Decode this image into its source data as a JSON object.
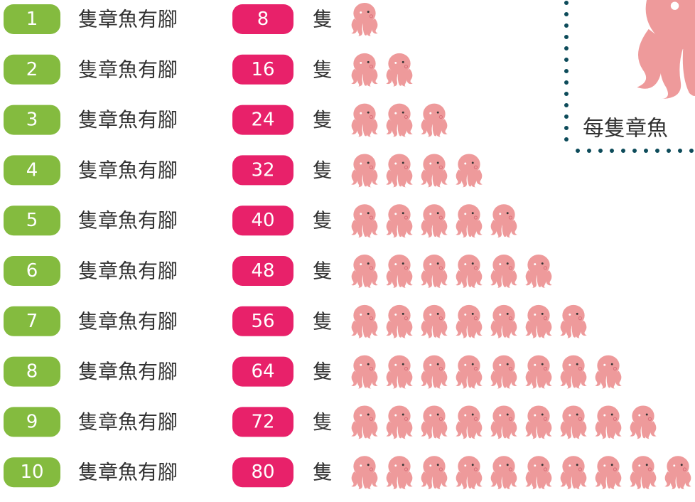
{
  "rows": [
    {
      "count": 1,
      "label": "隻章魚有腳",
      "legs": 8,
      "unit": "隻"
    },
    {
      "count": 2,
      "label": "隻章魚有腳",
      "legs": 16,
      "unit": "隻"
    },
    {
      "count": 3,
      "label": "隻章魚有腳",
      "legs": 24,
      "unit": "隻"
    },
    {
      "count": 4,
      "label": "隻章魚有腳",
      "legs": 32,
      "unit": "隻"
    },
    {
      "count": 5,
      "label": "隻章魚有腳",
      "legs": 40,
      "unit": "隻"
    },
    {
      "count": 6,
      "label": "隻章魚有腳",
      "legs": 48,
      "unit": "隻"
    },
    {
      "count": 7,
      "label": "隻章魚有腳",
      "legs": 56,
      "unit": "隻"
    },
    {
      "count": 8,
      "label": "隻章魚有腳",
      "legs": 64,
      "unit": "隻"
    },
    {
      "count": 9,
      "label": "隻章魚有腳",
      "legs": 72,
      "unit": "隻"
    },
    {
      "count": 10,
      "label": "隻章魚有腳",
      "legs": 80,
      "unit": "隻"
    }
  ],
  "note": "每隻章魚"
}
